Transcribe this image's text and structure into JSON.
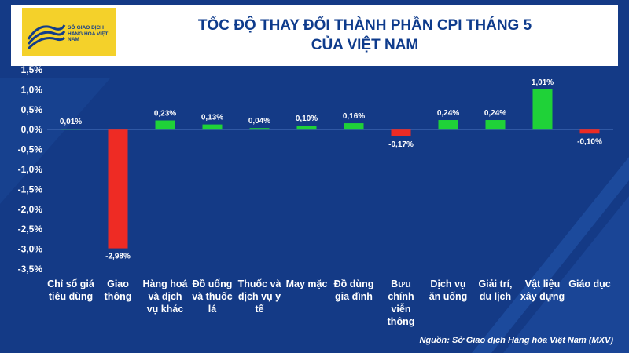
{
  "header": {
    "logo_text": "SỞ GIAO DỊCH HÀNG HÓA VIỆT NAM",
    "title_line1": "TỐC ĐỘ THAY ĐỔI THÀNH PHẦN CPI THÁNG 5",
    "title_line2": "CỦA VIỆT NAM"
  },
  "source": "Nguồn: Sở Giao dịch Hàng hóa Việt Nam (MXV)",
  "colors": {
    "background": "#143a86",
    "positive": "#1fd238",
    "negative": "#ee2b24",
    "title": "#0e3b8c",
    "logo": "#f4d12a"
  },
  "chart_data": {
    "type": "bar",
    "title": "TỐC ĐỘ THAY ĐỔI THÀNH PHẦN CPI THÁNG 5 CỦA VIỆT NAM",
    "categories": [
      [
        "Chỉ số giá",
        "tiêu dùng"
      ],
      [
        "Giao",
        "thông"
      ],
      [
        "Hàng hoá",
        "và dịch",
        "vụ khác"
      ],
      [
        "Đồ uống",
        "và thuốc",
        "lá"
      ],
      [
        "Thuốc và",
        "dịch vụ y",
        "tế"
      ],
      [
        "May mặc"
      ],
      [
        "Đồ dùng",
        "gia đình"
      ],
      [
        "Bưu",
        "chính",
        "viễn",
        "thông"
      ],
      [
        "Dịch vụ",
        "ăn uống"
      ],
      [
        "Giải trí,",
        "du lịch"
      ],
      [
        "Vật liệu",
        "xây dựng"
      ],
      [
        "Giáo dục"
      ]
    ],
    "values": [
      0.01,
      -2.98,
      0.23,
      0.13,
      0.04,
      0.1,
      0.16,
      -0.17,
      0.24,
      0.24,
      1.01,
      -0.1
    ],
    "data_labels": [
      "0,01%",
      "-2,98%",
      "0,23%",
      "0,13%",
      "0,04%",
      "0,10%",
      "0,16%",
      "-0,17%",
      "0,24%",
      "0,24%",
      "1,01%",
      "-0,10%"
    ],
    "ylim": [
      -3.5,
      1.5
    ],
    "yticks": [
      1.5,
      1.0,
      0.5,
      0.0,
      -0.5,
      -1.0,
      -1.5,
      -2.0,
      -2.5,
      -3.0,
      -3.5
    ],
    "ytick_labels": [
      "1,5%",
      "1,0%",
      "0,5%",
      "0,0%",
      "-0,5%",
      "-1,0%",
      "-1,5%",
      "-2,0%",
      "-2,5%",
      "-3,0%",
      "-3,5%"
    ],
    "grid": false,
    "legend": "none"
  }
}
